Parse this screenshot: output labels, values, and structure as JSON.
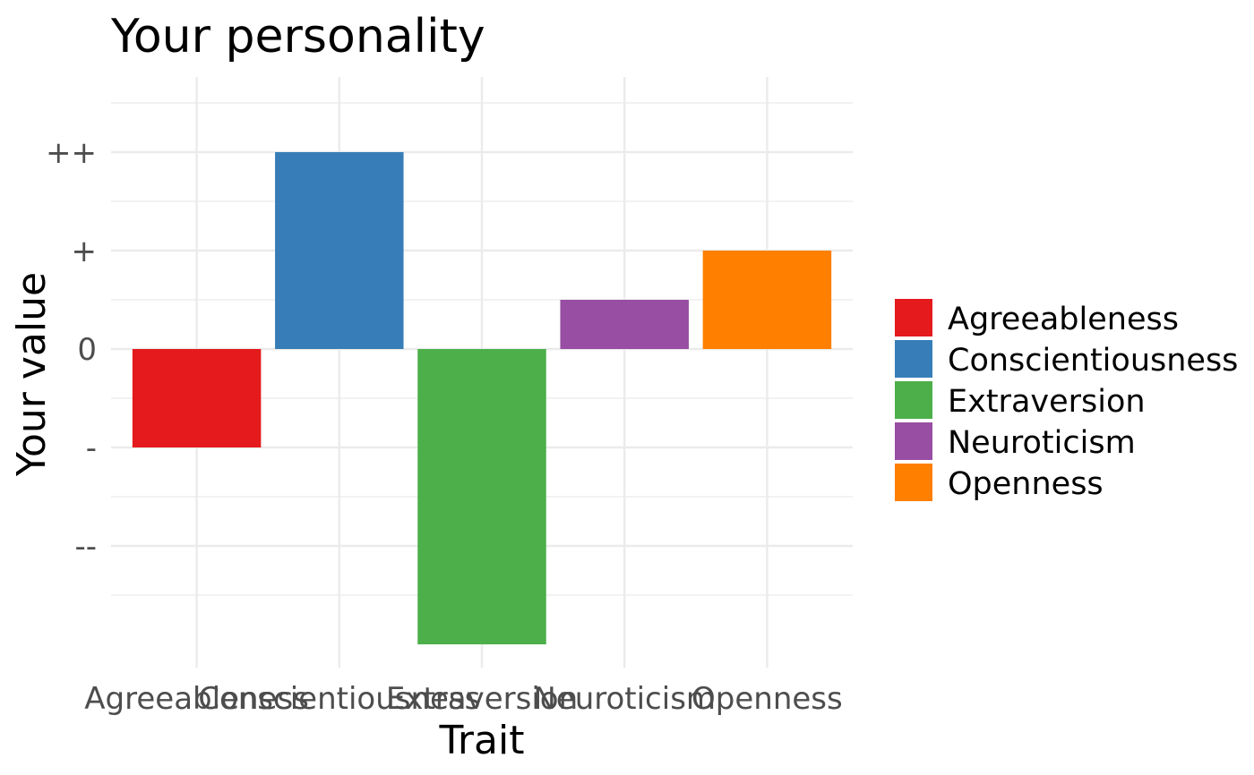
{
  "chart_data": {
    "type": "bar",
    "title": "Your personality",
    "xlabel": "Trait",
    "ylabel": "Your value",
    "categories": [
      "Agreeableness",
      "Conscientiousness",
      "Extraversion",
      "Neuroticism",
      "Openness"
    ],
    "values": [
      -1,
      2,
      -3,
      0.5,
      1
    ],
    "colors": [
      "#e41a1c",
      "#377eb8",
      "#4daf4a",
      "#984ea3",
      "#ff7f00"
    ],
    "yticks": [
      {
        "value": -2,
        "label": "--"
      },
      {
        "value": -1,
        "label": "-"
      },
      {
        "value": 0,
        "label": "0"
      },
      {
        "value": 1,
        "label": "+"
      },
      {
        "value": 2,
        "label": "++"
      }
    ],
    "ylim": [
      -3.15,
      2.5
    ],
    "grid": true,
    "legend": {
      "position": "right",
      "entries": [
        "Agreeableness",
        "Conscientiousness",
        "Extraversion",
        "Neuroticism",
        "Openness"
      ]
    }
  }
}
